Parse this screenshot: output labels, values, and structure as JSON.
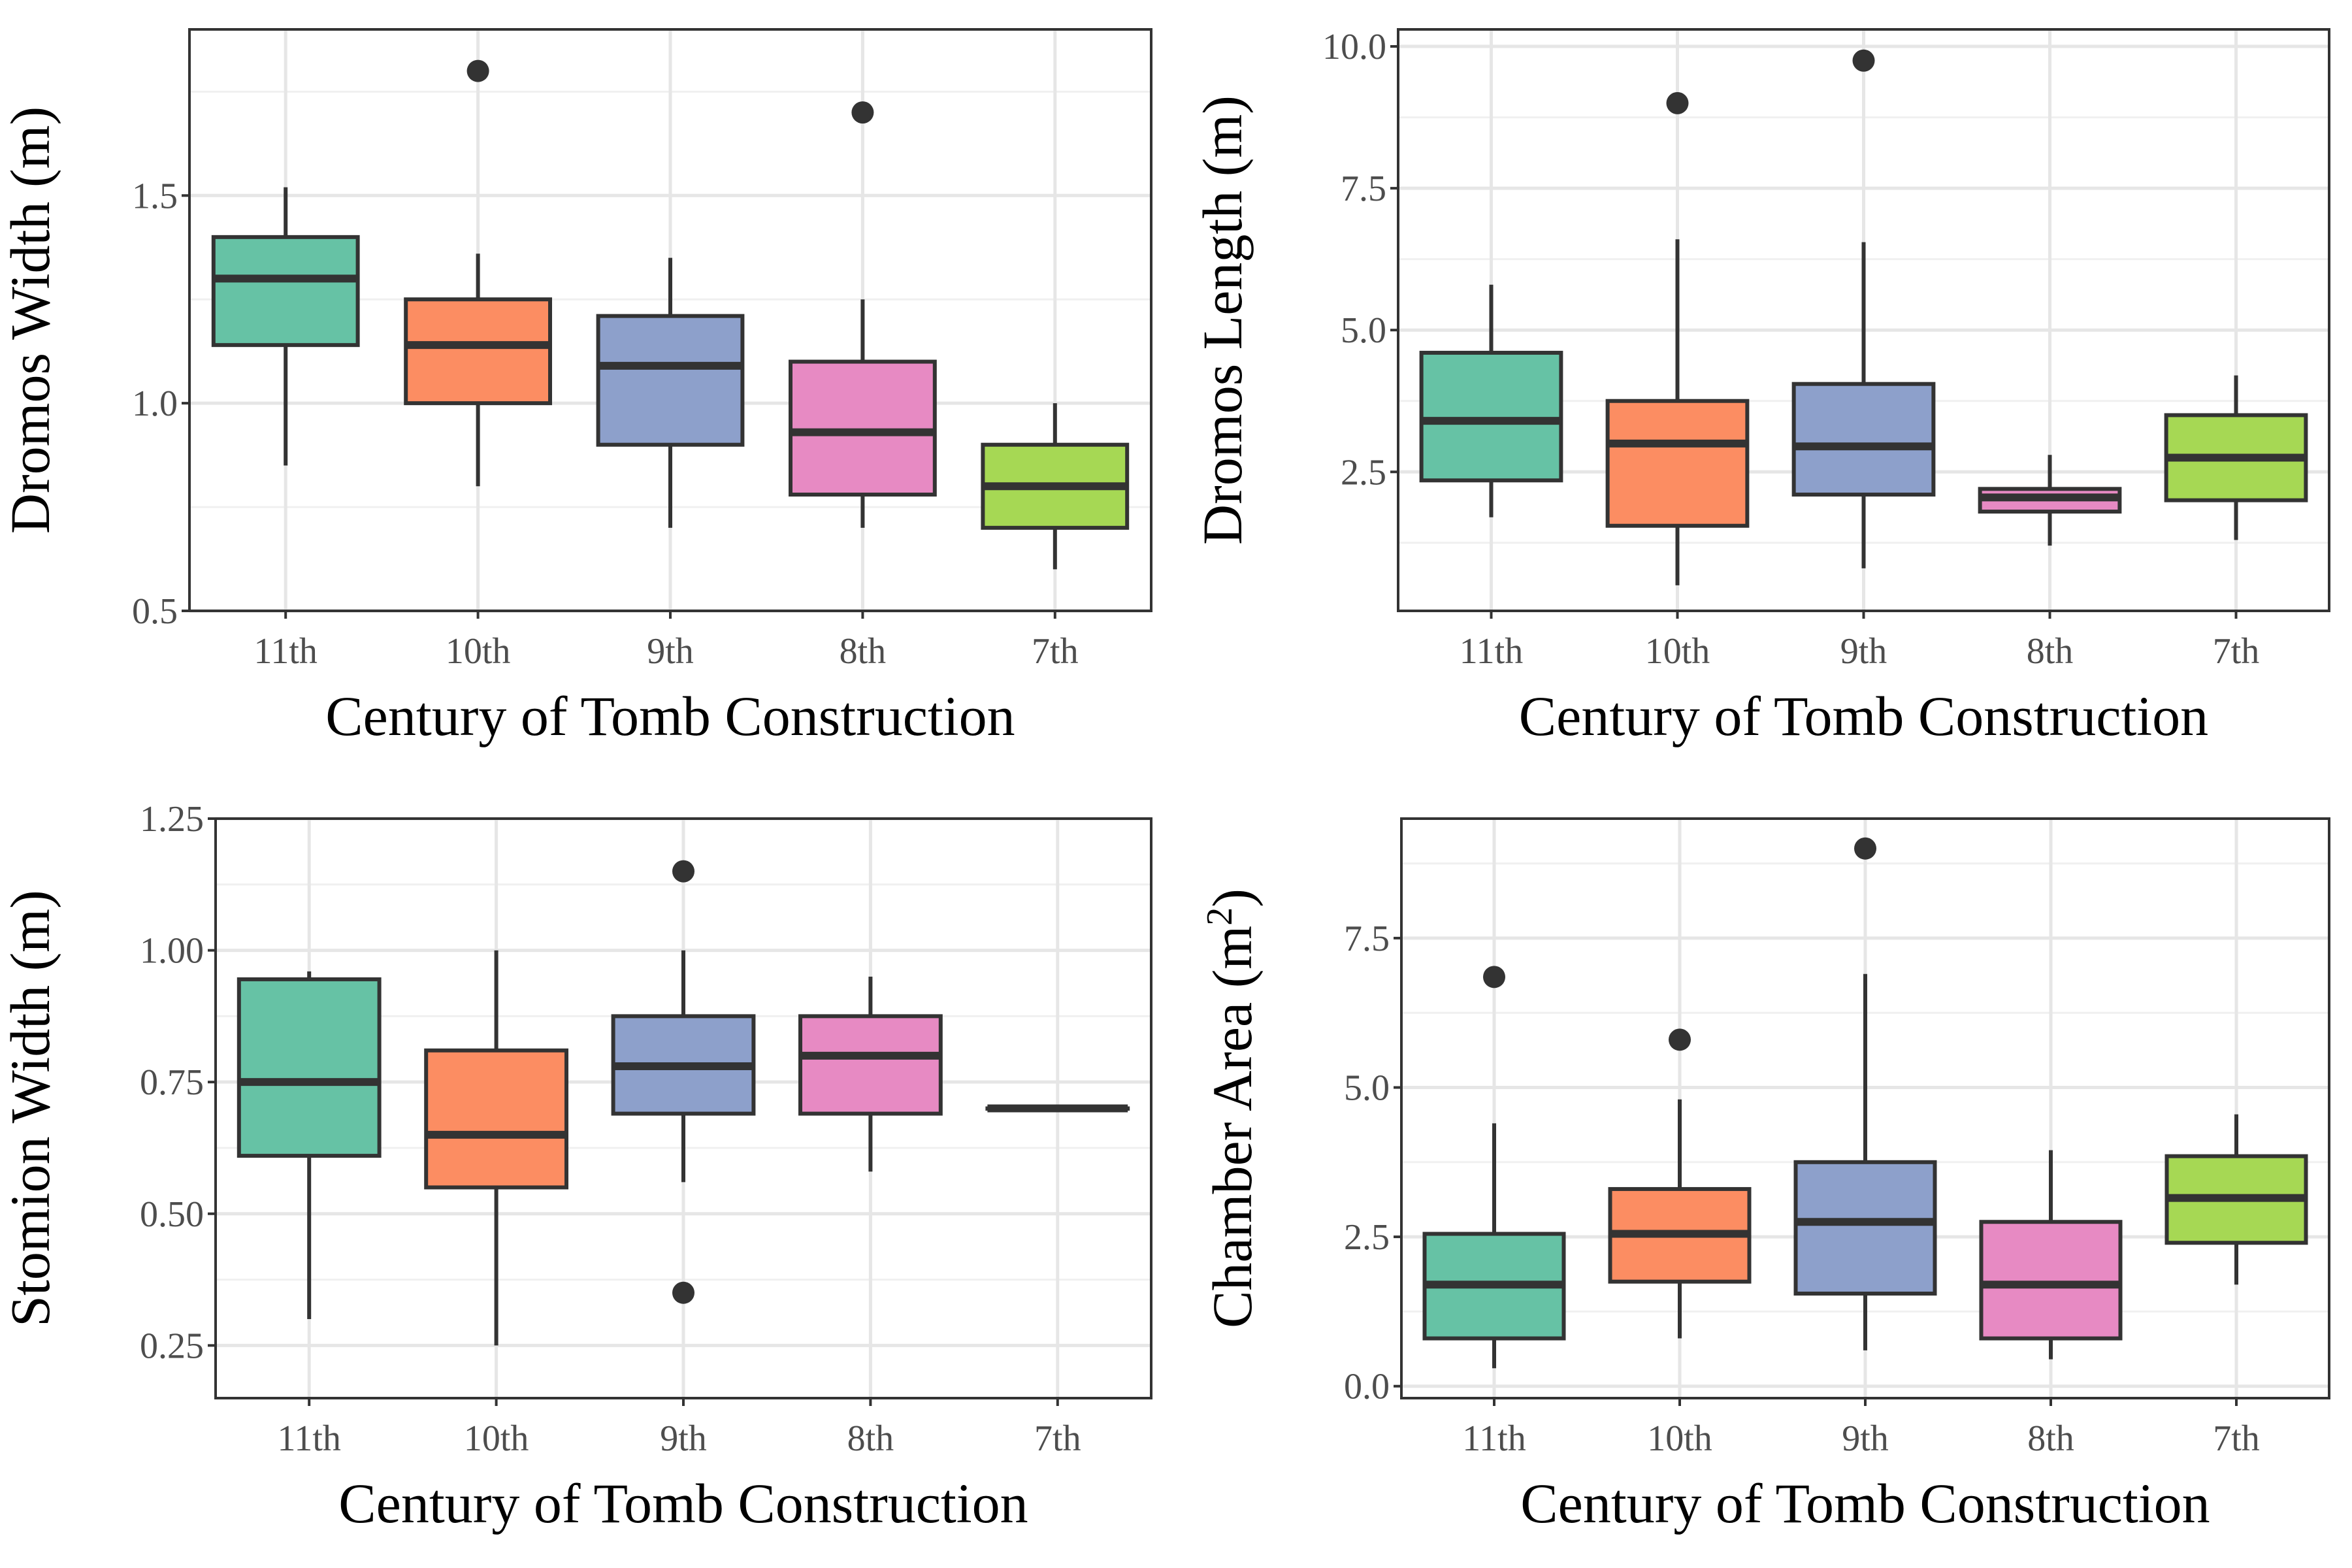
{
  "chart_data": [
    {
      "type": "boxplot",
      "xlabel": "Century of Tomb Construction",
      "ylabel": "Dromos Width (m)",
      "ylabel_superscript": "",
      "ylabel_suffix": "",
      "categories": [
        "11th",
        "10th",
        "9th",
        "8th",
        "7th"
      ],
      "colors": [
        "#66c2a5",
        "#fc8d62",
        "#8da0cb",
        "#e78ac3",
        "#a6d854"
      ],
      "ylim": [
        0.5,
        1.9
      ],
      "yticks": [
        0.5,
        1.0,
        1.5
      ],
      "ytick_labels": [
        "0.5",
        "1.0",
        "1.5"
      ],
      "grid": true,
      "boxes": [
        {
          "min": 0.85,
          "q1": 1.14,
          "median": 1.3,
          "q3": 1.4,
          "max": 1.52,
          "outliers": []
        },
        {
          "min": 0.8,
          "q1": 1.0,
          "median": 1.14,
          "q3": 1.25,
          "max": 1.36,
          "outliers": [
            1.8
          ]
        },
        {
          "min": 0.7,
          "q1": 0.9,
          "median": 1.09,
          "q3": 1.21,
          "max": 1.35,
          "outliers": []
        },
        {
          "min": 0.7,
          "q1": 0.78,
          "median": 0.93,
          "q3": 1.1,
          "max": 1.25,
          "outliers": [
            1.7
          ]
        },
        {
          "min": 0.6,
          "q1": 0.7,
          "median": 0.8,
          "q3": 0.9,
          "max": 1.0,
          "outliers": []
        }
      ]
    },
    {
      "type": "boxplot",
      "xlabel": "Century of Tomb Construction",
      "ylabel": "Dromos Length (m)",
      "ylabel_superscript": "",
      "ylabel_suffix": "",
      "categories": [
        "11th",
        "10th",
        "9th",
        "8th",
        "7th"
      ],
      "colors": [
        "#66c2a5",
        "#fc8d62",
        "#8da0cb",
        "#e78ac3",
        "#a6d854"
      ],
      "ylim": [
        0.05,
        10.3
      ],
      "yticks": [
        2.5,
        5.0,
        7.5,
        10.0
      ],
      "ytick_labels": [
        "2.5",
        "5.0",
        "7.5",
        "10.0"
      ],
      "grid": true,
      "boxes": [
        {
          "min": 1.7,
          "q1": 2.35,
          "median": 3.4,
          "q3": 4.6,
          "max": 5.8,
          "outliers": []
        },
        {
          "min": 0.5,
          "q1": 1.55,
          "median": 3.0,
          "q3": 3.75,
          "max": 6.6,
          "outliers": [
            9.0
          ]
        },
        {
          "min": 0.8,
          "q1": 2.1,
          "median": 2.95,
          "q3": 4.05,
          "max": 6.55,
          "outliers": [
            9.75
          ]
        },
        {
          "min": 1.2,
          "q1": 1.8,
          "median": 2.05,
          "q3": 2.2,
          "max": 2.8,
          "outliers": []
        },
        {
          "min": 1.3,
          "q1": 2.0,
          "median": 2.75,
          "q3": 3.5,
          "max": 4.2,
          "outliers": []
        }
      ]
    },
    {
      "type": "boxplot",
      "xlabel": "Century of Tomb Construction",
      "ylabel": "Stomion Width (m)",
      "ylabel_superscript": "",
      "ylabel_suffix": "",
      "categories": [
        "11th",
        "10th",
        "9th",
        "8th",
        "7th"
      ],
      "colors": [
        "#66c2a5",
        "#fc8d62",
        "#8da0cb",
        "#e78ac3",
        "#a6d854"
      ],
      "ylim": [
        0.15,
        1.25
      ],
      "yticks": [
        0.25,
        0.5,
        0.75,
        1.0,
        1.25
      ],
      "ytick_labels": [
        "0.25",
        "0.50",
        "0.75",
        "1.00",
        "1.25"
      ],
      "grid": true,
      "boxes": [
        {
          "min": 0.3,
          "q1": 0.61,
          "median": 0.75,
          "q3": 0.945,
          "max": 0.96,
          "outliers": []
        },
        {
          "min": 0.25,
          "q1": 0.55,
          "median": 0.65,
          "q3": 0.81,
          "max": 1.0,
          "outliers": []
        },
        {
          "min": 0.56,
          "q1": 0.69,
          "median": 0.78,
          "q3": 0.875,
          "max": 1.0,
          "outliers": [
            1.15,
            0.35
          ]
        },
        {
          "min": 0.58,
          "q1": 0.69,
          "median": 0.8,
          "q3": 0.875,
          "max": 0.95,
          "outliers": []
        },
        {
          "min": 0.7,
          "q1": 0.7,
          "median": 0.7,
          "q3": 0.7,
          "max": 0.7,
          "outliers": []
        }
      ]
    },
    {
      "type": "boxplot",
      "xlabel": "Century of Tomb Construction",
      "ylabel": "Chamber Area (m",
      "ylabel_superscript": "2",
      "ylabel_suffix": ")",
      "categories": [
        "11th",
        "10th",
        "9th",
        "8th",
        "7th"
      ],
      "colors": [
        "#66c2a5",
        "#fc8d62",
        "#8da0cb",
        "#e78ac3",
        "#a6d854"
      ],
      "ylim": [
        -0.2,
        9.5
      ],
      "yticks": [
        0.0,
        2.5,
        5.0,
        7.5
      ],
      "ytick_labels": [
        "0.0",
        "2.5",
        "5.0",
        "7.5"
      ],
      "grid": true,
      "boxes": [
        {
          "min": 0.3,
          "q1": 0.8,
          "median": 1.7,
          "q3": 2.55,
          "max": 4.4,
          "outliers": [
            6.85
          ]
        },
        {
          "min": 0.8,
          "q1": 1.75,
          "median": 2.55,
          "q3": 3.3,
          "max": 4.8,
          "outliers": [
            5.8
          ]
        },
        {
          "min": 0.6,
          "q1": 1.55,
          "median": 2.75,
          "q3": 3.75,
          "max": 6.9,
          "outliers": [
            9.0
          ]
        },
        {
          "min": 0.45,
          "q1": 0.8,
          "median": 1.7,
          "q3": 2.75,
          "max": 3.95,
          "outliers": []
        },
        {
          "min": 1.7,
          "q1": 2.4,
          "median": 3.15,
          "q3": 3.85,
          "max": 4.55,
          "outliers": []
        }
      ]
    }
  ]
}
